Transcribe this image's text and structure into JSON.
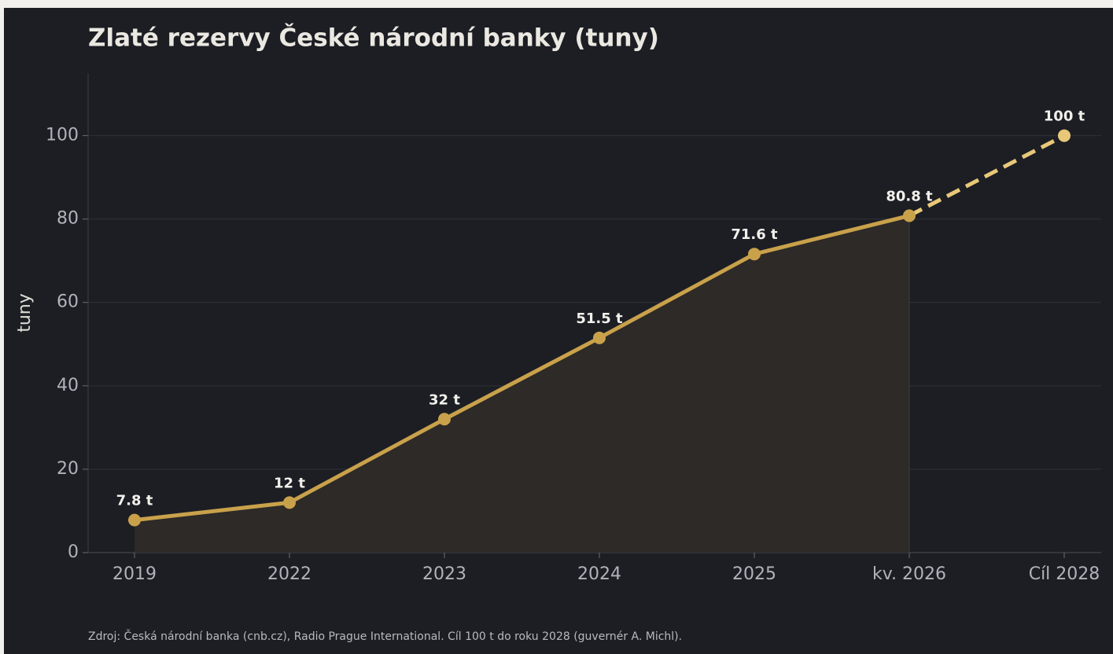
{
  "chart_data": {
    "type": "line",
    "title": "Zlaté rezervy České národní banky (tuny)",
    "ylabel": "tuny",
    "source": "Zdroj: Česká národní banka (cnb.cz), Radio Prague International. Cíl 100 t do roku 2028 (guvernér A. Michl).",
    "categories": [
      "2019",
      "2022",
      "2023",
      "2024",
      "2025",
      "kv. 2026",
      "Cíl 2028"
    ],
    "values": [
      7.8,
      12,
      32,
      51.5,
      71.6,
      80.8,
      100
    ],
    "value_labels": [
      "7.8 t",
      "12 t",
      "32 t",
      "51.5 t",
      "71.6 t",
      "80.8 t",
      "100 t"
    ],
    "dash_from_index": 5,
    "color": "#c9a14b",
    "dash_color": "#e8c878",
    "fill_color": "#2d2a27",
    "ylim": [
      0,
      115
    ],
    "yticks": [
      0,
      20,
      40,
      60,
      80,
      100
    ],
    "grid": true
  }
}
